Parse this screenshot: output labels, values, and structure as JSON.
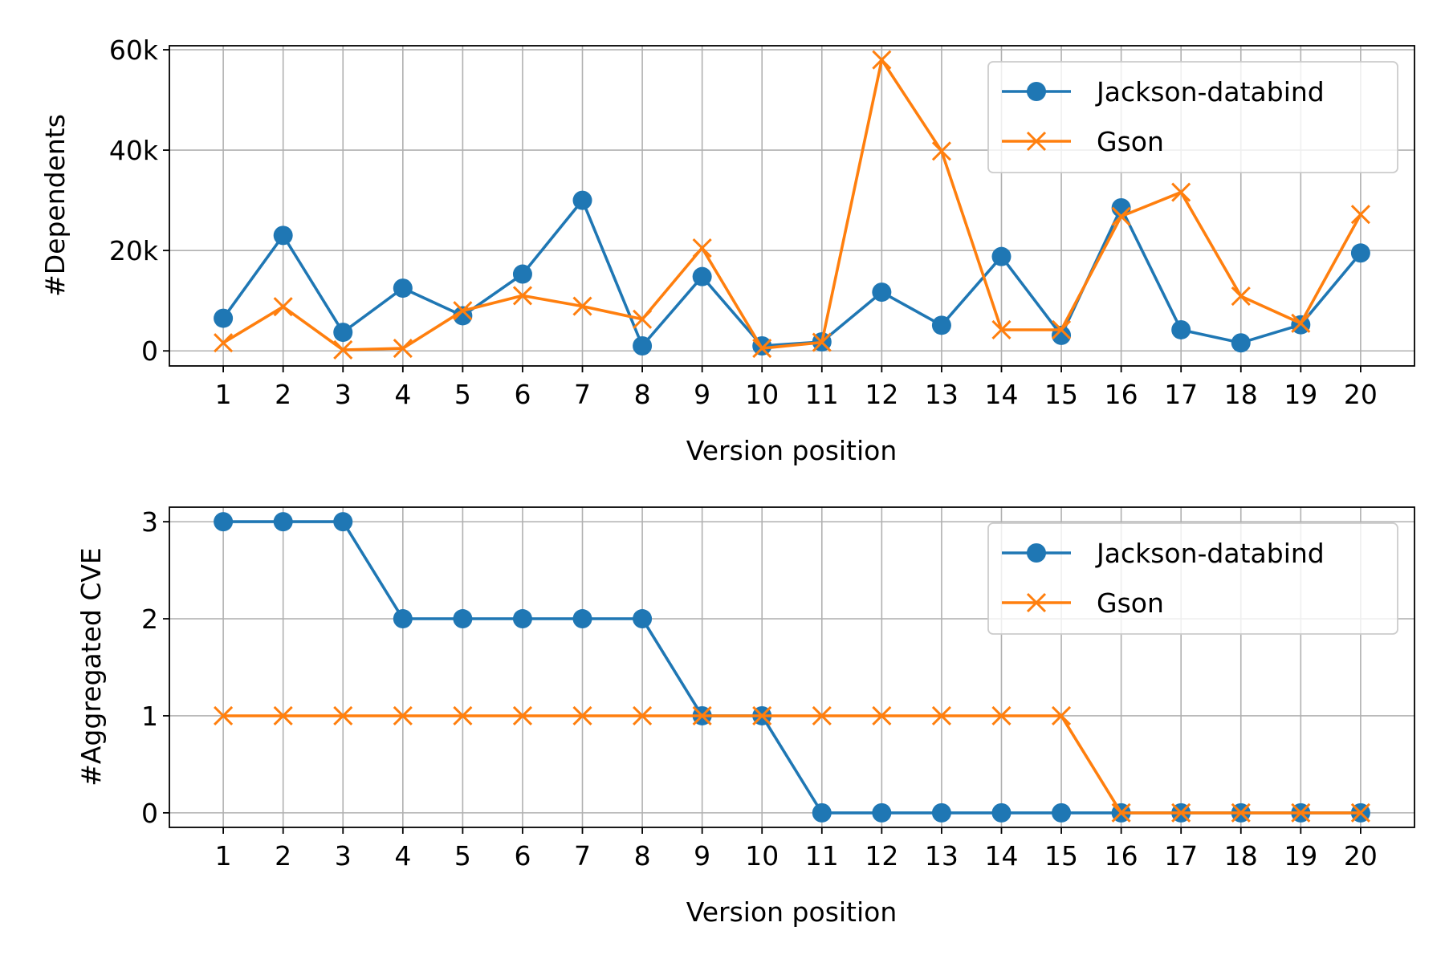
{
  "colors": {
    "jackson": "#1f77b4",
    "gson": "#ff7f0e"
  },
  "chart_data": [
    {
      "type": "line",
      "title": "",
      "xlabel": "Version position",
      "ylabel": "#Dependents",
      "x": [
        1,
        2,
        3,
        4,
        5,
        6,
        7,
        8,
        9,
        10,
        11,
        12,
        13,
        14,
        15,
        16,
        17,
        18,
        19,
        20
      ],
      "xlim": [
        0.1,
        20.9
      ],
      "ylim": [
        -3000,
        60800
      ],
      "yticks": [
        0,
        20000,
        40000,
        60000
      ],
      "ytick_labels": [
        "0",
        "20k",
        "40k",
        "60k"
      ],
      "grid": true,
      "legend_placement": "top-right",
      "series": [
        {
          "name": "Jackson-databind",
          "marker": "circle",
          "color": "#1f77b4",
          "values": [
            6500,
            23000,
            3700,
            12500,
            7000,
            15300,
            30000,
            1000,
            14800,
            1000,
            1800,
            11700,
            5100,
            18800,
            3100,
            28500,
            4200,
            1600,
            5200,
            19500
          ]
        },
        {
          "name": "Gson",
          "marker": "x",
          "color": "#ff7f0e",
          "values": [
            1600,
            8800,
            200,
            500,
            8000,
            11000,
            8900,
            6300,
            20500,
            500,
            1700,
            58000,
            39800,
            4200,
            4200,
            26800,
            31600,
            10900,
            5500,
            27200
          ]
        }
      ]
    },
    {
      "type": "line",
      "title": "",
      "xlabel": "Version position",
      "ylabel": "#Aggregated CVE",
      "x": [
        1,
        2,
        3,
        4,
        5,
        6,
        7,
        8,
        9,
        10,
        11,
        12,
        13,
        14,
        15,
        16,
        17,
        18,
        19,
        20
      ],
      "xlim": [
        0.1,
        20.9
      ],
      "ylim": [
        -0.15,
        3.15
      ],
      "yticks": [
        0,
        1,
        2,
        3
      ],
      "ytick_labels": [
        "0",
        "1",
        "2",
        "3"
      ],
      "grid": true,
      "legend_placement": "top-right",
      "series": [
        {
          "name": "Jackson-databind",
          "marker": "circle",
          "color": "#1f77b4",
          "values": [
            3,
            3,
            3,
            2,
            2,
            2,
            2,
            2,
            1,
            1,
            0,
            0,
            0,
            0,
            0,
            0,
            0,
            0,
            0,
            0
          ]
        },
        {
          "name": "Gson",
          "marker": "x",
          "color": "#ff7f0e",
          "values": [
            1,
            1,
            1,
            1,
            1,
            1,
            1,
            1,
            1,
            1,
            1,
            1,
            1,
            1,
            1,
            0,
            0,
            0,
            0,
            0
          ]
        }
      ]
    }
  ]
}
